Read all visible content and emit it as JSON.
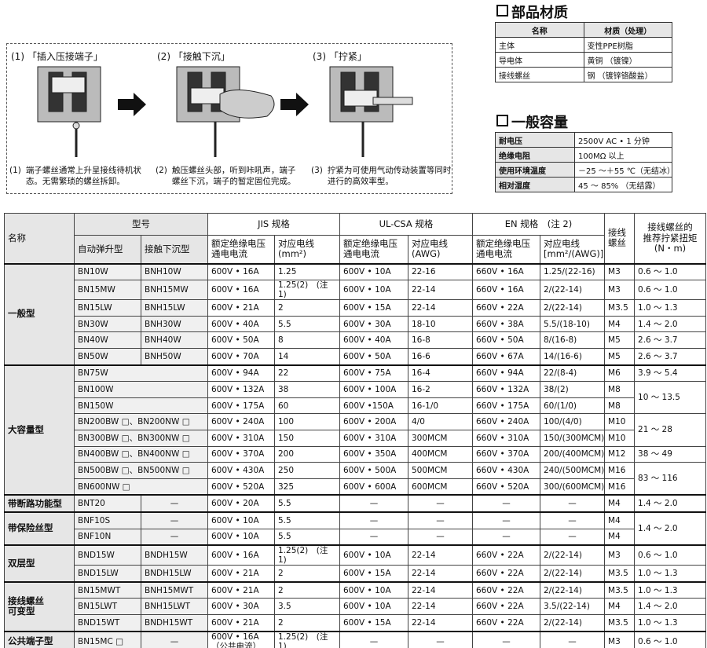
{
  "steps": [
    {
      "num": "(1)",
      "title": "「插入压接端子」",
      "desc": "端子螺丝通常上升呈接线待机状态。无需繁琐的螺丝拆卸。"
    },
    {
      "num": "(2)",
      "title": "「接触下沉」",
      "desc": "触压螺丝头部，听到咔吼声，端子螺丝下沉，端子的暂定固位完成。"
    },
    {
      "num": "(3)",
      "title": "「拧紧」",
      "desc": "拧紧为可使用气动传动装置等同时进行的高效率型。"
    }
  ],
  "materials": {
    "title": "部品材质",
    "header": [
      "名称",
      "材质（处理）"
    ],
    "rows": [
      [
        "主体",
        "变性PPE树脂"
      ],
      [
        "导电体",
        "黄铜 （镀镍）"
      ],
      [
        "接线螺丝",
        "钢 （镀锌铬酸盐）"
      ]
    ]
  },
  "capacity": {
    "title": "一般容量",
    "rows": [
      [
        "耐电压",
        "2500V AC • 1 分钟"
      ],
      [
        "绝缘电阻",
        "100MΩ 以上"
      ],
      [
        "使用环境温度",
        "－25 ～＋55 ℃（无结冰）"
      ],
      [
        "相对湿度",
        "45 ～ 85% （无结露）"
      ]
    ]
  },
  "table": {
    "header": {
      "name": "名称",
      "model": "型号",
      "jis": "JIS 规格",
      "ul": "UL-CSA 规格",
      "en": "EN 规格　(注 2)",
      "screw": "接线\n螺丝",
      "torque": "接线螺丝的\n推荐拧紧扭矩\n(N・m)",
      "sub": [
        "自动弹升型",
        "接触下沉型",
        "额定绝缘电压\n通电电流",
        "对应电线\n(mm²)",
        "额定绝缘电压\n通电电流",
        "对应电线\n(AWG)",
        "额定绝缘电压\n通电电流",
        "对应电线\n[mm²/(AWG)]"
      ]
    },
    "groups": [
      {
        "name": "一般型",
        "rows": [
          [
            "BN10W",
            "BNH10W",
            "600V • 16A",
            "1.25",
            "600V • 10A",
            "22-16",
            "660V • 16A",
            "1.25/(22-16)",
            "M3",
            "0.6 ～ 1.0"
          ],
          [
            "BN15MW",
            "BNH15MW",
            "600V • 16A",
            "1.25(2)　(注1)",
            "600V • 10A",
            "22-14",
            "660V • 16A",
            "2/(22-14)",
            "M3",
            "0.6 ～ 1.0"
          ],
          [
            "BN15LW",
            "BNH15LW",
            "600V • 21A",
            "2",
            "600V • 15A",
            "22-14",
            "660V • 22A",
            "2/(22-14)",
            "M3.5",
            "1.0 ～ 1.3"
          ],
          [
            "BN30W",
            "BNH30W",
            "600V • 40A",
            "5.5",
            "600V • 30A",
            "18-10",
            "660V • 38A",
            "5.5/(18-10)",
            "M4",
            "1.4 ～ 2.0"
          ],
          [
            "BN40W",
            "BNH40W",
            "600V • 50A",
            "8",
            "600V • 40A",
            "16-8",
            "660V • 50A",
            "8/(16-8)",
            "M5",
            "2.6 ～ 3.7"
          ],
          [
            "BN50W",
            "BNH50W",
            "600V • 70A",
            "14",
            "600V • 50A",
            "16-6",
            "660V • 67A",
            "14/(16-6)",
            "M5",
            "2.6 ～ 3.7"
          ]
        ]
      },
      {
        "name": "大容量型",
        "rows": [
          [
            "BN75W",
            null,
            "600V • 94A",
            "22",
            "600V • 75A",
            "16-4",
            "660V • 94A",
            "22/(8-4)",
            "M6",
            "3.9 ～ 5.4"
          ],
          [
            "BN100W",
            null,
            "600V • 132A",
            "38",
            "600V • 100A",
            "16-2",
            "660V • 132A",
            "38/(2)",
            "M8",
            "10 ～ 13.5"
          ],
          [
            "BN150W",
            null,
            "600V • 175A",
            "60",
            "600V •150A",
            "16-1/0",
            "660V • 175A",
            "60/(1/0)",
            "M8",
            null
          ],
          [
            "BN200BW □、BN200NW □",
            null,
            "600V • 240A",
            "100",
            "600V • 200A",
            "4/0",
            "660V • 240A",
            "100/(4/0)",
            "M10",
            "21 ～ 28"
          ],
          [
            "BN300BW □、BN300NW □",
            null,
            "600V • 310A",
            "150",
            "600V • 310A",
            "300MCM",
            "660V • 310A",
            "150/(300MCM)",
            "M10",
            null
          ],
          [
            "BN400BW □、BN400NW □",
            null,
            "600V • 370A",
            "200",
            "600V • 350A",
            "400MCM",
            "660V • 370A",
            "200/(400MCM)",
            "M12",
            "38 ～ 49"
          ],
          [
            "BN500BW □、BN500NW □",
            null,
            "600V • 430A",
            "250",
            "600V • 500A",
            "500MCM",
            "660V • 430A",
            "240/(500MCM)",
            "M16",
            "83 ～ 116"
          ],
          [
            "BN600NW □",
            null,
            "600V • 520A",
            "325",
            "600V • 600A",
            "600MCM",
            "660V • 520A",
            "300/(600MCM)",
            "M16",
            null
          ]
        ]
      },
      {
        "name": "带断路功能型",
        "rows": [
          [
            "BNT20",
            "—",
            "600V • 20A",
            "5.5",
            "—",
            "—",
            "—",
            "—",
            "M4",
            "1.4 ～ 2.0"
          ]
        ]
      },
      {
        "name": "带保险丝型",
        "rows": [
          [
            "BNF10S",
            "—",
            "600V • 10A",
            "5.5",
            "—",
            "—",
            "—",
            "—",
            "M4",
            "1.4 ～ 2.0"
          ],
          [
            "BNF10N",
            "—",
            "600V • 10A",
            "5.5",
            "—",
            "—",
            "—",
            "—",
            "M4",
            null
          ]
        ]
      },
      {
        "name": "双层型",
        "rows": [
          [
            "BND15W",
            "BNDH15W",
            "600V • 16A",
            "1.25(2)　(注1)",
            "600V • 10A",
            "22-14",
            "660V • 22A",
            "2/(22-14)",
            "M3",
            "0.6 ～ 1.0"
          ],
          [
            "BND15LW",
            "BNDH15LW",
            "600V • 21A",
            "2",
            "600V • 15A",
            "22-14",
            "660V • 22A",
            "2/(22-14)",
            "M3.5",
            "1.0 ～ 1.3"
          ]
        ]
      },
      {
        "name": "接线螺丝\n可变型",
        "rows": [
          [
            "BN15MWT",
            "BNH15MWT",
            "600V • 21A",
            "2",
            "600V • 10A",
            "22-14",
            "660V • 22A",
            "2/(22-14)",
            "M3.5",
            "1.0 ～ 1.3"
          ],
          [
            "BN15LWT",
            "BNH15LWT",
            "600V • 30A",
            "3.5",
            "600V • 10A",
            "22-14",
            "660V • 22A",
            "3.5/(22-14)",
            "M4",
            "1.4 ～ 2.0"
          ],
          [
            "BND15WT",
            "BNDH15WT",
            "600V • 21A",
            "2",
            "600V • 15A",
            "22-14",
            "660V • 22A",
            "2/(22-14)",
            "M3.5",
            "1.0 ～ 1.3"
          ]
        ]
      },
      {
        "name": "公共端子型",
        "rows": [
          [
            "BN15MC □",
            "—",
            "600V • 16A\n（公共电流）",
            "1.25(2)　(注1)",
            "—",
            "—",
            "—",
            "—",
            "M3",
            "0.6 ～ 1.0"
          ]
        ]
      }
    ]
  }
}
